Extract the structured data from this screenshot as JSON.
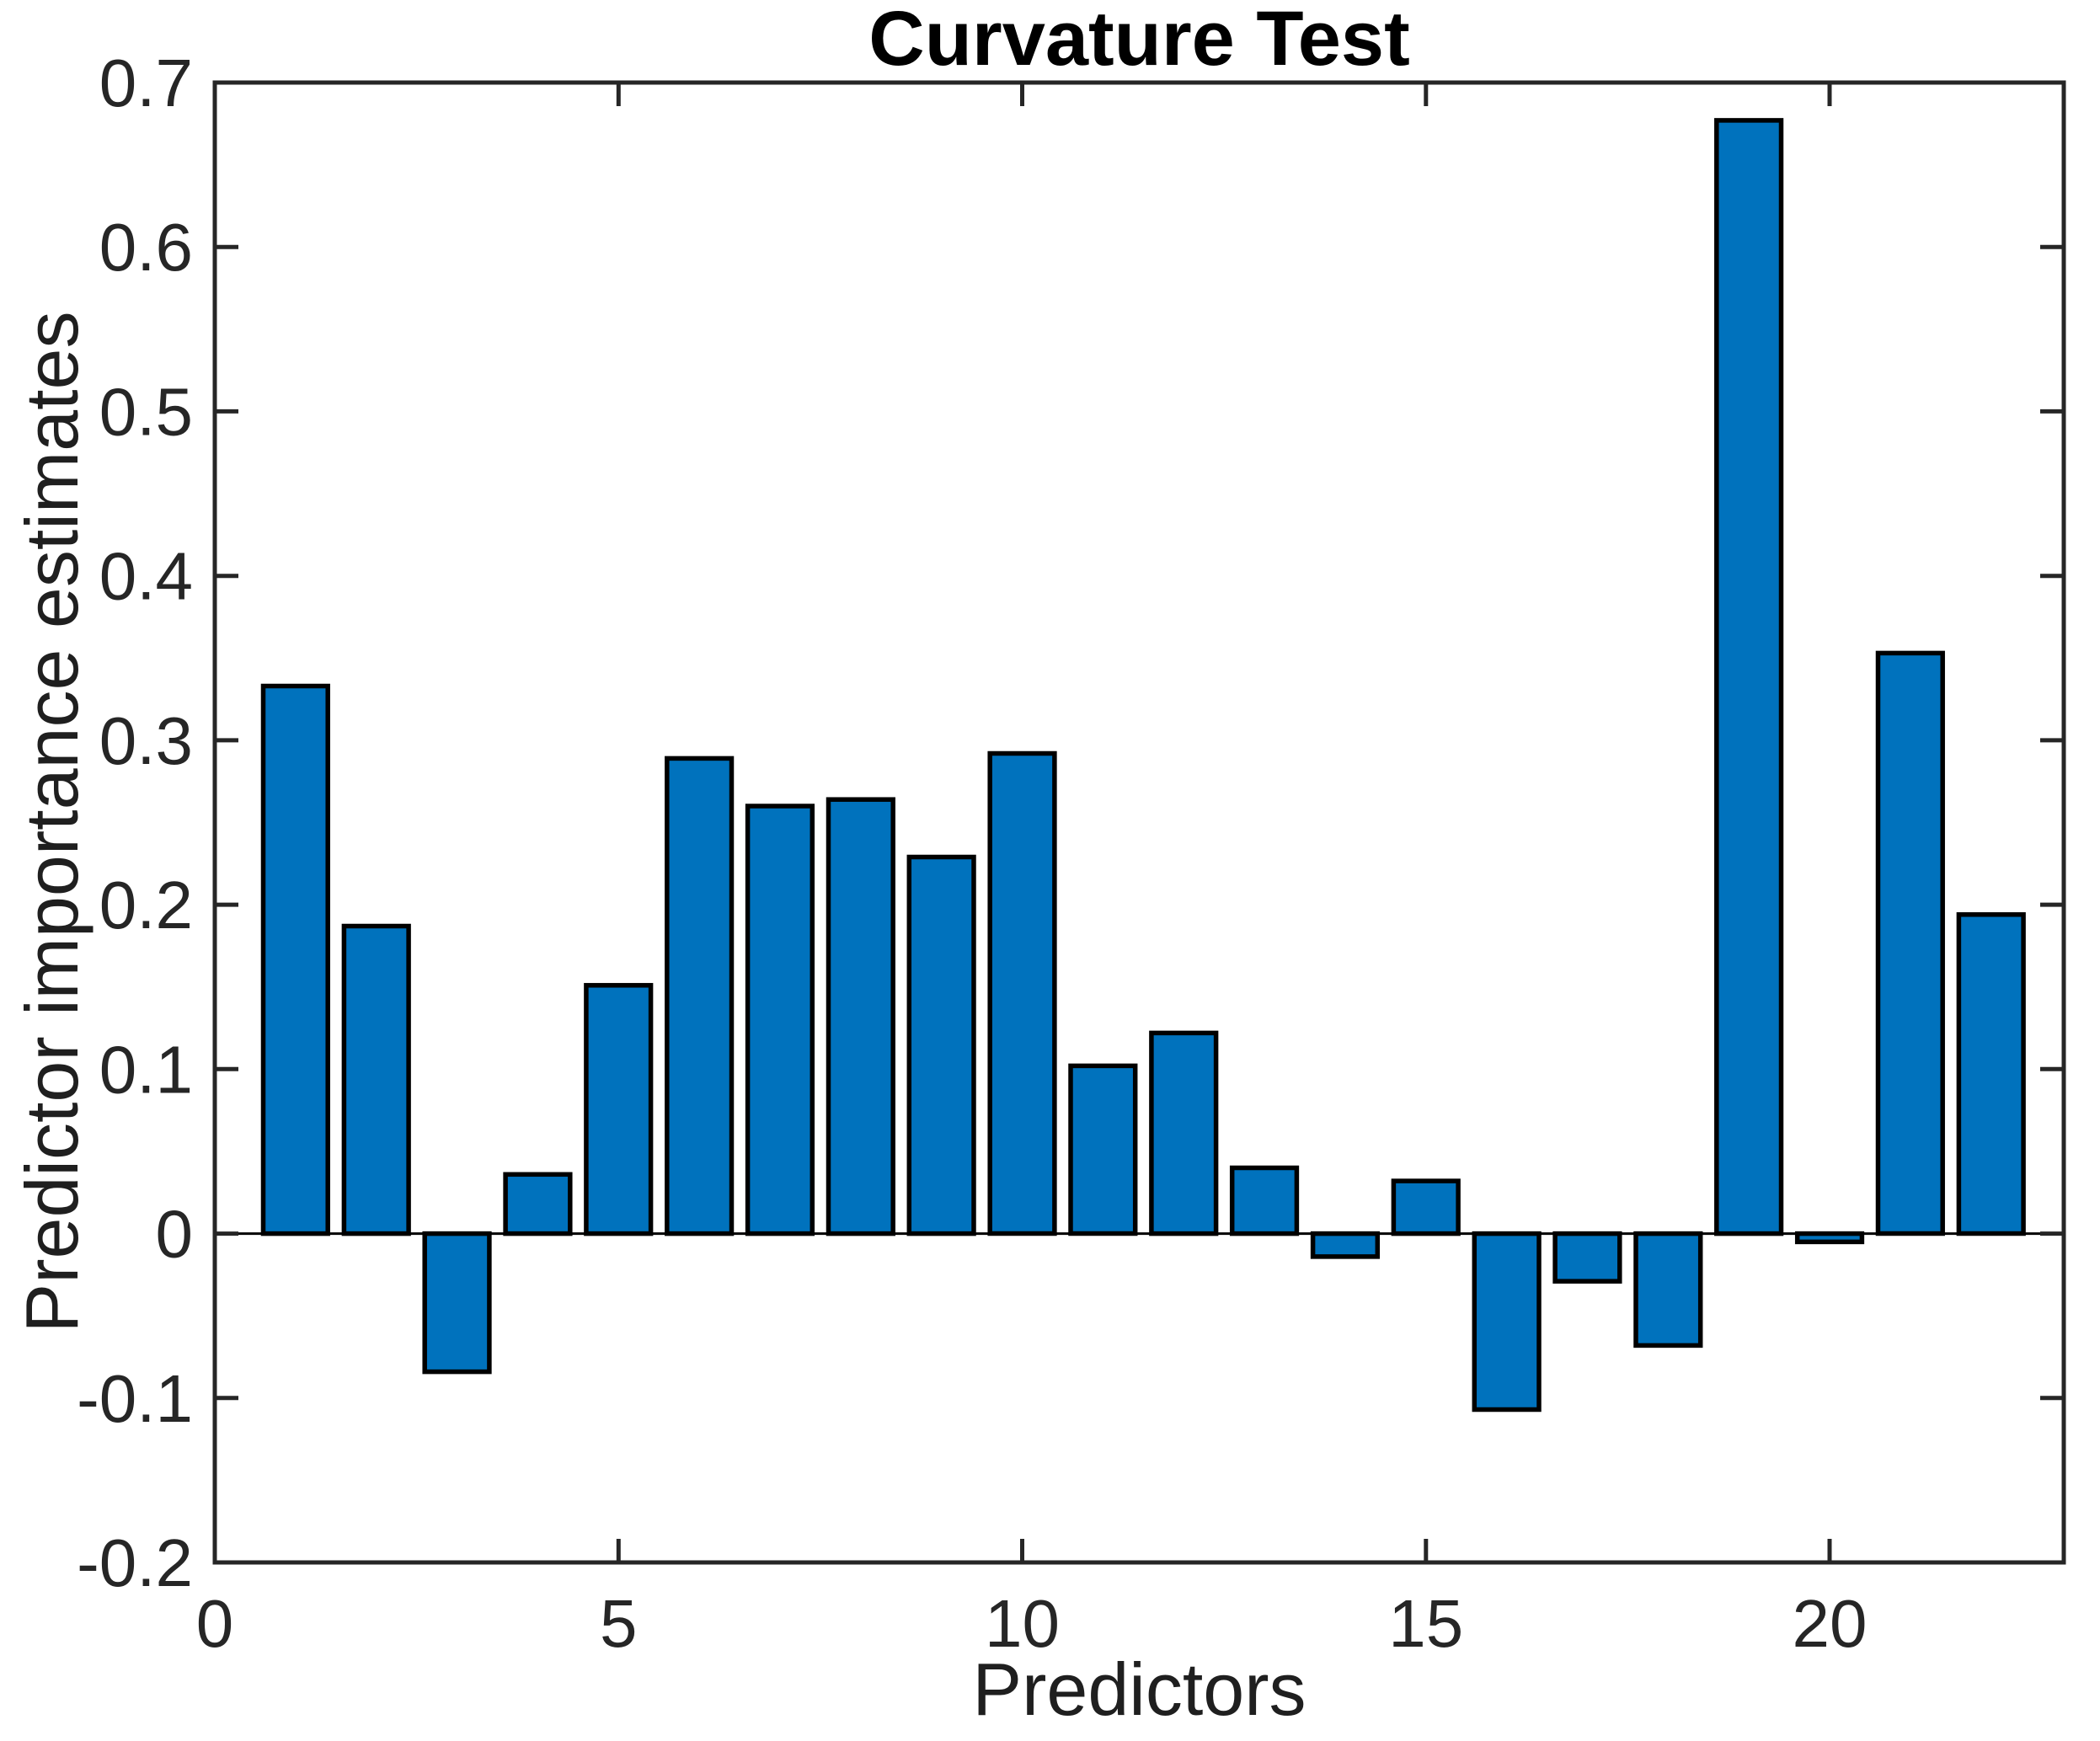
{
  "figure": {
    "title": "Curvature Test",
    "xlabel": "Predictors",
    "ylabel": "Predictor importance estimates"
  },
  "chart_data": {
    "type": "bar",
    "title": "Curvature Test",
    "xlabel": "Predictors",
    "ylabel": "Predictor importance estimates",
    "x": [
      1,
      2,
      3,
      4,
      5,
      6,
      7,
      8,
      9,
      10,
      11,
      12,
      13,
      14,
      15,
      16,
      17,
      18,
      19,
      20,
      21,
      22
    ],
    "values": [
      0.333,
      0.187,
      -0.084,
      0.036,
      0.151,
      0.289,
      0.26,
      0.264,
      0.229,
      0.292,
      0.102,
      0.122,
      0.04,
      -0.014,
      0.032,
      -0.107,
      -0.029,
      -0.068,
      0.677,
      -0.005,
      0.353,
      0.194
    ],
    "xlim": [
      0,
      22.9
    ],
    "ylim": [
      -0.2,
      0.7
    ],
    "xticks": [
      0,
      5,
      10,
      15,
      20
    ],
    "xtick_labels": [
      "0",
      "5",
      "10",
      "15",
      "20"
    ],
    "yticks": [
      -0.2,
      -0.1,
      0,
      0.1,
      0.2,
      0.3,
      0.4,
      0.5,
      0.6,
      0.7
    ],
    "ytick_labels": [
      "-0.2",
      "-0.1",
      "0",
      "0.1",
      "0.2",
      "0.3",
      "0.4",
      "0.5",
      "0.6",
      "0.7"
    ],
    "bar_width": 0.8,
    "bar_color": "#0072BD",
    "bar_edge_color": "#000000",
    "axis_color": "#262626",
    "tick_label_color": "#262626",
    "baseline_value": 0,
    "grid": false,
    "legend": null
  }
}
